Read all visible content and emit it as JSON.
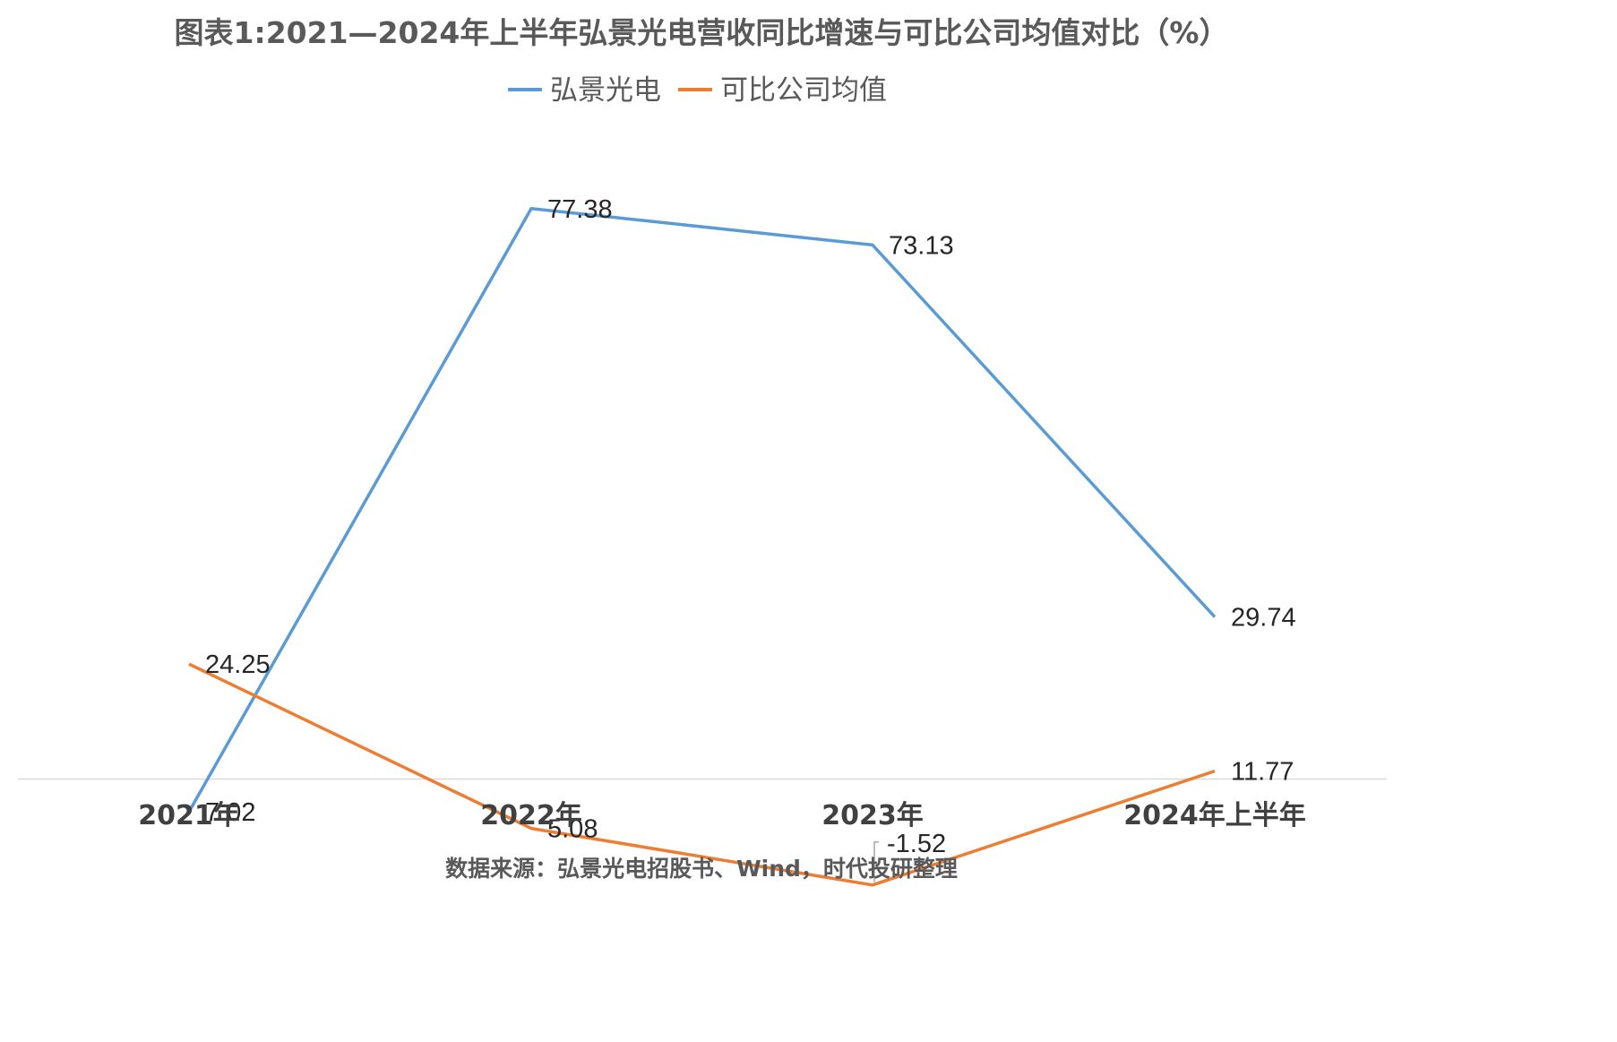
{
  "chart_data": {
    "type": "line",
    "title": "图表1:2021—2024年上半年弘景光电营收同比增速与可比公司均值对比（%）",
    "categories": [
      "2021年",
      "2022年",
      "2023年",
      "2024年上半年"
    ],
    "series": [
      {
        "name": "弘景光电",
        "color": "#5b9bd5",
        "values": [
          7.02,
          77.38,
          73.13,
          29.74
        ],
        "labels": [
          "7.02",
          "77.38",
          "73.13",
          "29.74"
        ]
      },
      {
        "name": "可比公司均值",
        "color": "#ed7d31",
        "values": [
          24.25,
          5.08,
          -1.52,
          11.77
        ],
        "labels": [
          "24.25",
          "5.08",
          "-1.52",
          "11.77"
        ]
      }
    ],
    "ylim": [
      -2.8,
      92.3
    ],
    "legend_position": "top",
    "grid": false,
    "source": "数据来源：弘景光电招股书、Wind，时代投研整理"
  }
}
